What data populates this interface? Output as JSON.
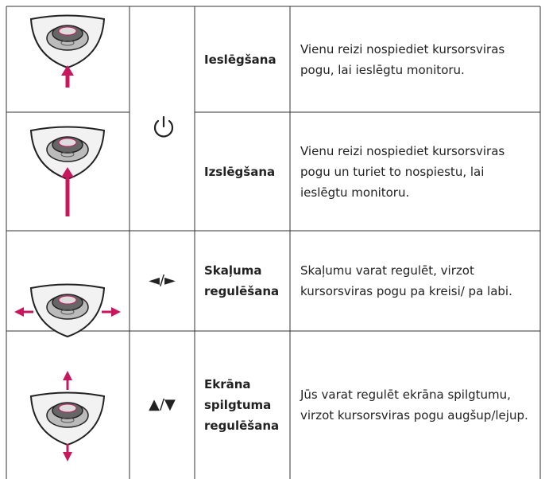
{
  "rows": [
    {
      "label": "Ieslēgšana",
      "description": "Vienu reizi nospiediet kursorsviras pogu, lai ieslēgtu monitoru."
    },
    {
      "label": "Izslēgšana",
      "description": "Vienu reizi nospiediet kursorsviras pogu un turiet to nospiestu, lai ieslēgtu monitoru."
    },
    {
      "symbol": "◄/►",
      "label": "Skaļuma regulēšana",
      "description": "Skaļumu varat regulēt, virzot kursorsviras pogu pa kreisi/ pa labi."
    },
    {
      "symbol": "▲/▼",
      "label": "Ekrāna spilgtuma regulēšana",
      "description": "Jūs varat regulēt ekrāna spilgtumu, virzot kursorsviras pogu augšup/lejup."
    }
  ]
}
